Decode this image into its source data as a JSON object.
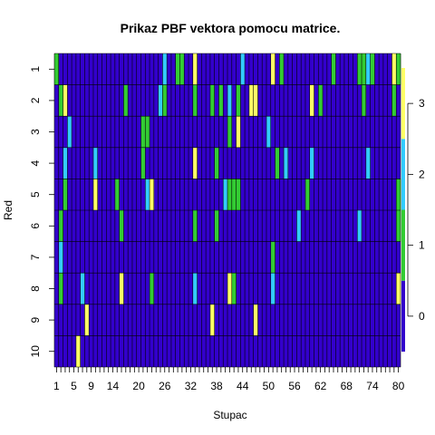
{
  "chart_data": {
    "type": "heatmap",
    "title": "Prikaz PBF vektora pomocu matrice.",
    "xlabel": "Stupac",
    "ylabel": "Red",
    "ncols": 80,
    "rows": [
      "1",
      "2",
      "3",
      "4",
      "5",
      "6",
      "7",
      "8",
      "9",
      "10"
    ],
    "x_tick_labels": [
      "1",
      "5",
      "9",
      "14",
      "20",
      "26",
      "32",
      "38",
      "44",
      "50",
      "56",
      "62",
      "68",
      "74",
      "80"
    ],
    "x_tick_positions": [
      1,
      5,
      9,
      14,
      20,
      26,
      32,
      38,
      44,
      50,
      56,
      62,
      68,
      74,
      80
    ],
    "legend_ticks": [
      0,
      1,
      2,
      3
    ],
    "value_range": [
      -0.5,
      3.5
    ],
    "palette": [
      "#3300cc",
      "#33cc33",
      "#33ccff",
      "#ffff66"
    ],
    "cells": [
      [
        1,
        0,
        0,
        0,
        0,
        0,
        0,
        0,
        0,
        0,
        0,
        0,
        0,
        0,
        0,
        0,
        0,
        0,
        0,
        0,
        0,
        0,
        0,
        0,
        0,
        2,
        0,
        0,
        1,
        1,
        0,
        0,
        3,
        0,
        0,
        0,
        0,
        0,
        0,
        0,
        0,
        0,
        0,
        2,
        0,
        0,
        0,
        0,
        0,
        0,
        3,
        0,
        1,
        0,
        0,
        0,
        0,
        0,
        0,
        0,
        0,
        0,
        0,
        0,
        1,
        0,
        0,
        0,
        0,
        0,
        1,
        1,
        2,
        1,
        0,
        0,
        0,
        0,
        3,
        1
      ],
      [
        0,
        1,
        3,
        0,
        0,
        0,
        0,
        0,
        0,
        0,
        0,
        0,
        0,
        0,
        0,
        0,
        1,
        0,
        0,
        0,
        0,
        0,
        0,
        0,
        2,
        1,
        0,
        0,
        0,
        0,
        0,
        0,
        1,
        0,
        0,
        0,
        1,
        0,
        1,
        0,
        2,
        0,
        1,
        0,
        0,
        3,
        3,
        0,
        0,
        0,
        0,
        0,
        0,
        0,
        0,
        0,
        0,
        0,
        0,
        3,
        0,
        1,
        0,
        0,
        0,
        0,
        0,
        0,
        0,
        0,
        0,
        1,
        0,
        0,
        0,
        0,
        0,
        0,
        1,
        0
      ],
      [
        0,
        0,
        0,
        2,
        0,
        0,
        0,
        0,
        0,
        0,
        0,
        0,
        0,
        0,
        0,
        0,
        0,
        0,
        0,
        0,
        1,
        1,
        0,
        0,
        0,
        0,
        0,
        0,
        0,
        0,
        0,
        0,
        0,
        0,
        0,
        0,
        0,
        0,
        0,
        0,
        1,
        0,
        3,
        0,
        0,
        0,
        0,
        0,
        0,
        2,
        0,
        0,
        0,
        0,
        0,
        0,
        0,
        0,
        0,
        0,
        0,
        0,
        0,
        0,
        0,
        0,
        0,
        0,
        0,
        0,
        0,
        0,
        0,
        0,
        0,
        0,
        0,
        0,
        0,
        0
      ],
      [
        0,
        0,
        2,
        0,
        0,
        0,
        0,
        0,
        0,
        2,
        0,
        0,
        0,
        0,
        0,
        0,
        0,
        0,
        0,
        0,
        1,
        0,
        0,
        0,
        0,
        0,
        0,
        0,
        0,
        0,
        0,
        0,
        3,
        0,
        0,
        0,
        0,
        1,
        0,
        0,
        0,
        0,
        0,
        0,
        0,
        0,
        0,
        0,
        0,
        0,
        0,
        1,
        0,
        2,
        0,
        0,
        0,
        0,
        0,
        2,
        0,
        0,
        0,
        0,
        0,
        0,
        0,
        0,
        0,
        0,
        0,
        0,
        2,
        0,
        0,
        0,
        0,
        0,
        0,
        0
      ],
      [
        0,
        0,
        1,
        0,
        0,
        0,
        0,
        0,
        0,
        3,
        0,
        0,
        0,
        0,
        1,
        0,
        0,
        0,
        0,
        0,
        0,
        2,
        3,
        0,
        0,
        0,
        0,
        0,
        0,
        0,
        0,
        0,
        0,
        0,
        0,
        0,
        0,
        0,
        0,
        2,
        1,
        1,
        1,
        0,
        0,
        0,
        0,
        0,
        0,
        0,
        0,
        0,
        0,
        0,
        0,
        0,
        0,
        0,
        1,
        0,
        0,
        0,
        0,
        0,
        0,
        0,
        0,
        0,
        0,
        0,
        0,
        0,
        0,
        0,
        0,
        0,
        0,
        0,
        0,
        1
      ],
      [
        0,
        1,
        0,
        0,
        0,
        0,
        0,
        0,
        0,
        0,
        0,
        0,
        0,
        0,
        0,
        1,
        0,
        0,
        0,
        0,
        0,
        0,
        0,
        0,
        0,
        0,
        0,
        0,
        0,
        0,
        0,
        0,
        1,
        0,
        0,
        0,
        0,
        1,
        0,
        0,
        0,
        0,
        0,
        0,
        0,
        0,
        0,
        0,
        0,
        0,
        0,
        0,
        0,
        0,
        0,
        0,
        2,
        0,
        0,
        0,
        0,
        0,
        0,
        0,
        0,
        0,
        0,
        0,
        0,
        0,
        2,
        0,
        0,
        0,
        0,
        0,
        0,
        0,
        0,
        1
      ],
      [
        0,
        2,
        0,
        0,
        0,
        0,
        0,
        0,
        0,
        0,
        0,
        0,
        0,
        0,
        0,
        0,
        0,
        0,
        0,
        0,
        0,
        0,
        0,
        0,
        0,
        0,
        0,
        0,
        0,
        0,
        0,
        0,
        0,
        0,
        0,
        0,
        0,
        0,
        0,
        0,
        0,
        0,
        0,
        0,
        0,
        0,
        0,
        0,
        0,
        0,
        1,
        0,
        0,
        0,
        0,
        0,
        0,
        0,
        0,
        0,
        0,
        0,
        0,
        0,
        0,
        0,
        0,
        0,
        0,
        0,
        0,
        0,
        0,
        0,
        0,
        0,
        0,
        0,
        0,
        0
      ],
      [
        0,
        1,
        0,
        0,
        0,
        0,
        2,
        0,
        0,
        0,
        0,
        0,
        0,
        0,
        0,
        3,
        0,
        0,
        0,
        0,
        0,
        0,
        1,
        0,
        0,
        0,
        0,
        0,
        0,
        0,
        0,
        0,
        2,
        0,
        0,
        0,
        0,
        0,
        0,
        0,
        3,
        1,
        0,
        0,
        0,
        0,
        0,
        0,
        0,
        0,
        2,
        0,
        0,
        0,
        0,
        0,
        0,
        0,
        0,
        0,
        0,
        0,
        0,
        0,
        0,
        0,
        0,
        0,
        0,
        0,
        0,
        0,
        0,
        0,
        0,
        0,
        0,
        0,
        0,
        3
      ],
      [
        0,
        0,
        0,
        0,
        0,
        0,
        0,
        3,
        0,
        0,
        0,
        0,
        0,
        0,
        0,
        0,
        0,
        0,
        0,
        0,
        0,
        0,
        0,
        0,
        0,
        0,
        0,
        0,
        0,
        0,
        0,
        0,
        0,
        0,
        0,
        0,
        3,
        0,
        0,
        0,
        0,
        0,
        0,
        0,
        0,
        0,
        3,
        0,
        0,
        0,
        0,
        0,
        0,
        0,
        0,
        0,
        0,
        0,
        0,
        0,
        0,
        0,
        0,
        0,
        0,
        0,
        0,
        0,
        0,
        0,
        0,
        0,
        0,
        0,
        0,
        0,
        0,
        0,
        0,
        0
      ],
      [
        0,
        0,
        0,
        0,
        0,
        3,
        0,
        0,
        0,
        0,
        0,
        0,
        0,
        0,
        0,
        0,
        0,
        0,
        0,
        0,
        0,
        0,
        0,
        0,
        0,
        0,
        0,
        0,
        0,
        0,
        0,
        0,
        0,
        0,
        0,
        0,
        0,
        0,
        0,
        0,
        0,
        0,
        0,
        0,
        0,
        0,
        0,
        0,
        0,
        0,
        0,
        0,
        0,
        0,
        0,
        0,
        0,
        0,
        0,
        0,
        0,
        0,
        0,
        0,
        0,
        0,
        0,
        0,
        0,
        0,
        0,
        0,
        0,
        0,
        0,
        0,
        0,
        0,
        0,
        0
      ]
    ]
  }
}
